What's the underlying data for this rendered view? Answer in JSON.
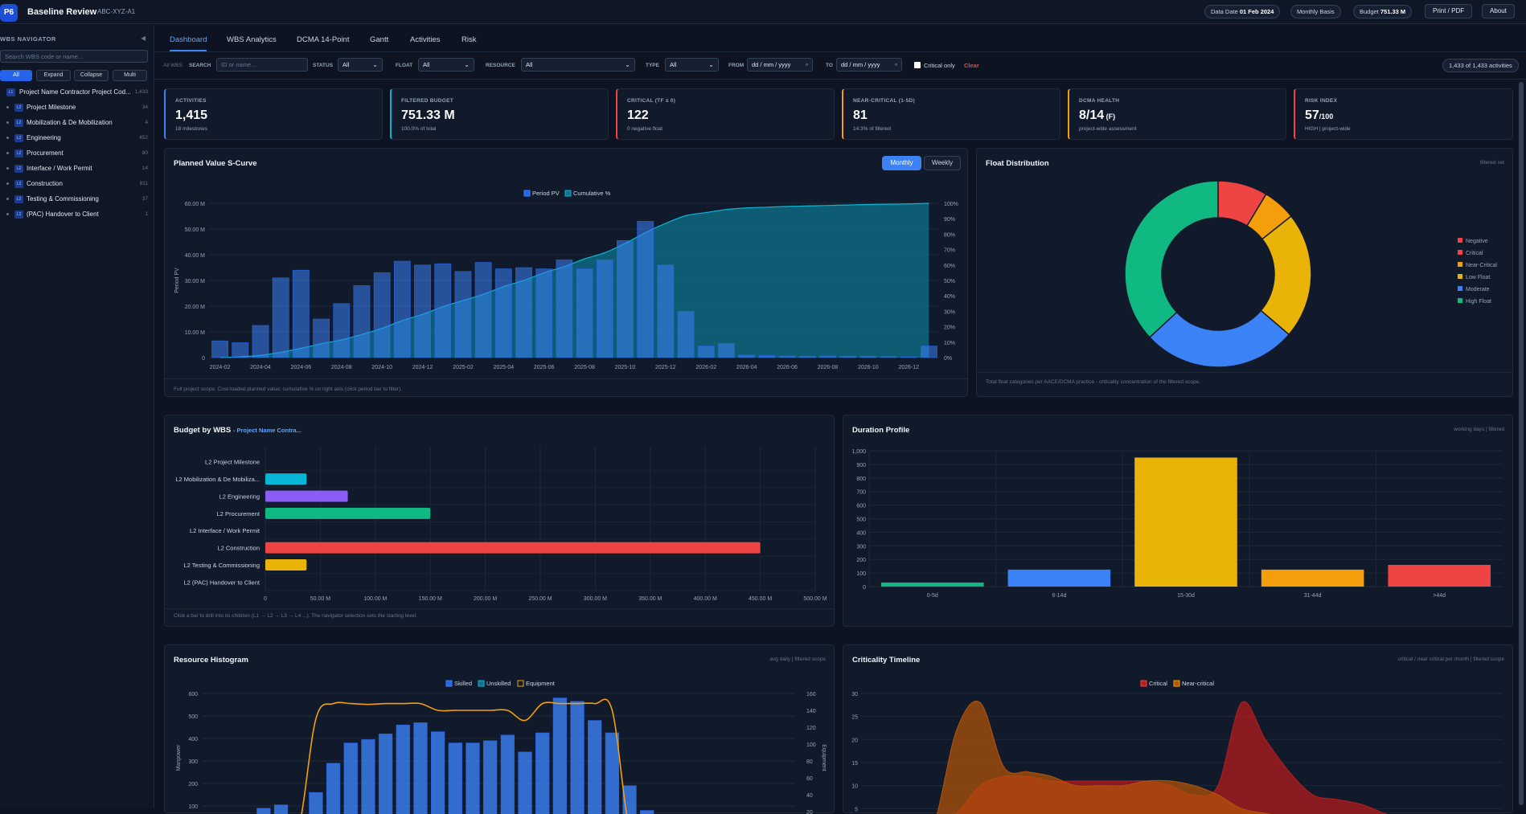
{
  "app": {
    "logo": "P6",
    "title": "Baseline Review",
    "project_code": "ABC-XYZ-A1"
  },
  "header": {
    "data_date_label": "Data Date",
    "data_date": "01 Feb 2024",
    "basis": "Monthly Basis",
    "budget_label": "Budget",
    "budget": "751.33 M",
    "print_label": "Print / PDF",
    "about_label": "About"
  },
  "sidebar": {
    "title": "WBS NAVIGATOR",
    "collapse_icon": "◀",
    "search_placeholder": "Search WBS code or name...",
    "buttons": [
      "All",
      "Expand",
      "Collapse",
      "Multi"
    ],
    "items": [
      {
        "level": "L1",
        "name": "Project Name Contractor Project Cod...",
        "count": "1,433"
      },
      {
        "level": "L2",
        "name": "Project Milestone",
        "count": "34"
      },
      {
        "level": "L2",
        "name": "Mobilization & De Mobilization",
        "count": "4"
      },
      {
        "level": "L2",
        "name": "Engineering",
        "count": "452"
      },
      {
        "level": "L2",
        "name": "Procurement",
        "count": "80"
      },
      {
        "level": "L2",
        "name": "Interface / Work Permit",
        "count": "14"
      },
      {
        "level": "L2",
        "name": "Construction",
        "count": "811"
      },
      {
        "level": "L2",
        "name": "Testing & Commissioning",
        "count": "37"
      },
      {
        "level": "L2",
        "name": "(PAC) Handover to Client",
        "count": "1"
      }
    ]
  },
  "tabs": [
    "Dashboard",
    "WBS Analytics",
    "DCMA 14-Point",
    "Gantt",
    "Activities",
    "Risk"
  ],
  "filters": {
    "scope": "All WBS",
    "search_label": "SEARCH",
    "search_placeholder": "ID or name...",
    "status_label": "STATUS",
    "status_value": "All",
    "float_label": "FLOAT",
    "float_value": "All",
    "resource_label": "RESOURCE",
    "resource_value": "All",
    "type_label": "TYPE",
    "type_value": "All",
    "from_label": "FROM",
    "from_placeholder": "dd / mm / yyyy",
    "to_label": "TO",
    "to_placeholder": "dd / mm / yyyy",
    "critical_only": "Critical only",
    "clear": "Clear",
    "count": "1,433 of 1,433 activities"
  },
  "kpis": [
    {
      "label": "ACTIVITIES",
      "value": "1,415",
      "unit": "",
      "sub": "18 milestones",
      "color": "#3b82f6"
    },
    {
      "label": "FILTERED BUDGET",
      "value": "751.33 M",
      "unit": "",
      "sub": "100.0% of total",
      "color": "#06b6d4"
    },
    {
      "label": "CRITICAL (TF ≤ 0)",
      "value": "122",
      "unit": "",
      "sub": "0 negative float",
      "color": "#ef4444"
    },
    {
      "label": "NEAR-CRITICAL (1-5D)",
      "value": "81",
      "unit": "",
      "sub": "14.3% of filtered",
      "color": "#f59e0b"
    },
    {
      "label": "DCMA HEALTH",
      "value": "8/14",
      "unit": " (F)",
      "sub": "project-wide assessment",
      "color": "#f59e0b"
    },
    {
      "label": "RISK INDEX",
      "value": "57",
      "unit": "/100",
      "sub": "HIGH | project-wide",
      "color": "#ef4444"
    }
  ],
  "panels": {
    "scurve": {
      "title": "Planned Value S-Curve",
      "monthly": "Monthly",
      "weekly": "Weekly",
      "footer": "Full project scope. Cost-loaded planned value; cumulative % on right axis (click period bar to filter)."
    },
    "float": {
      "title": "Float Distribution",
      "meta": "filtered set",
      "footer": "Total float categories per AACE/DCMA practice - criticality concentration of the filtered scope."
    },
    "budget": {
      "title": "Budget by WBS",
      "subtitle": "- Project Name Contra...",
      "footer": "Click a bar to drill into its children (L1 → L2 → L3 → L4 ...). The navigator selection sets the starting level."
    },
    "duration": {
      "title": "Duration Profile",
      "meta": "working days | filtered"
    },
    "resource": {
      "title": "Resource Histogram",
      "meta": "avg daily | filtered scope"
    },
    "criticality": {
      "title": "Criticality Timeline",
      "meta": "critical / near critical per month | filtered scope"
    }
  },
  "chart_data": [
    {
      "id": "scurve",
      "type": "bar",
      "title": "Planned Value S-Curve",
      "ylabel": "Period PV",
      "ylim": [
        0,
        60
      ],
      "ylim_right": [
        0,
        100
      ],
      "yticks": [
        "0",
        "10.00 M",
        "20.00 M",
        "30.00 M",
        "40.00 M",
        "50.00 M",
        "60.00 M"
      ],
      "yticks_right": [
        "0%",
        "10%",
        "20%",
        "30%",
        "40%",
        "50%",
        "60%",
        "70%",
        "80%",
        "90%",
        "100%"
      ],
      "xtick_labels": [
        "2024-02",
        "2024-04",
        "2024-06",
        "2024-08",
        "2024-10",
        "2024-12",
        "2025-02",
        "2025-04",
        "2025-06",
        "2025-08",
        "2025-10",
        "2025-12",
        "2026-02",
        "2026-04",
        "2026-06",
        "2026-08",
        "2026-10",
        "2026-12"
      ],
      "legend": [
        "Period PV",
        "Cumulative %"
      ],
      "legend_position": "top-center",
      "series": [
        {
          "name": "Period PV",
          "color": "#3b82f6",
          "values": [
            6.5,
            5.8,
            12.5,
            31,
            34,
            15,
            21,
            28,
            33,
            37.5,
            36,
            36.5,
            33.5,
            37,
            34.5,
            35,
            34.5,
            38,
            34.5,
            38,
            45.5,
            53,
            36,
            18,
            4.5,
            5.5,
            1,
            0.8,
            0.6,
            0.5,
            0.6,
            0.5,
            0.5,
            0.4,
            0.3,
            4.5
          ]
        },
        {
          "name": "Cumulative %",
          "color": "#0e7490",
          "values": [
            0,
            0.5,
            1.5,
            3.5,
            6,
            9,
            11.5,
            15,
            19,
            24,
            28,
            33,
            37,
            41,
            46,
            50,
            55,
            59,
            64,
            68,
            74,
            81,
            87,
            92,
            94,
            96,
            97,
            97.5,
            98,
            98.3,
            98.6,
            98.9,
            99.2,
            99.4,
            99.6,
            100
          ]
        }
      ]
    },
    {
      "id": "float",
      "type": "pie",
      "title": "Float Distribution",
      "legend_position": "right",
      "categories": [
        "Negative",
        "Critical",
        "Near-Critical",
        "Low Float",
        "Moderate",
        "High Float"
      ],
      "colors": [
        "#ef4444",
        "#ef4444",
        "#f59e0b",
        "#eab308",
        "#3b82f6",
        "#10b981"
      ],
      "values": [
        0,
        122,
        81,
        310,
        380,
        522
      ]
    },
    {
      "id": "budget",
      "type": "bar",
      "orientation": "horizontal",
      "title": "Budget by WBS",
      "xlim": [
        0,
        500
      ],
      "xticks": [
        "0",
        "50.00 M",
        "100.00 M",
        "150.00 M",
        "200.00 M",
        "250.00 M",
        "300.00 M",
        "350.00 M",
        "400.00 M",
        "450.00 M",
        "500.00 M"
      ],
      "categories": [
        "L2 Project Milestone",
        "L2 Mobilization & De Mobiliza...",
        "L2 Engineering",
        "L2 Procurement",
        "L2 Interface / Work Permit",
        "L2 Construction",
        "L2 Testing & Commissioning",
        "L2 (PAC) Handover to Client"
      ],
      "values": [
        0,
        37.5,
        75,
        150,
        0,
        450,
        37.5,
        0
      ],
      "colors": [
        "#3b82f6",
        "#06b6d4",
        "#8b5cf6",
        "#10b981",
        "#3b82f6",
        "#ef4444",
        "#eab308",
        "#3b82f6"
      ]
    },
    {
      "id": "duration",
      "type": "bar",
      "title": "Duration Profile",
      "ylim": [
        0,
        1000
      ],
      "yticks": [
        "0",
        "100",
        "200",
        "300",
        "400",
        "500",
        "600",
        "700",
        "800",
        "900",
        "1,000"
      ],
      "categories": [
        "0-5d",
        "6-14d",
        "15-30d",
        "31-44d",
        ">44d"
      ],
      "values": [
        30,
        125,
        950,
        125,
        160
      ],
      "colors": [
        "#10b981",
        "#3b82f6",
        "#eab308",
        "#f59e0b",
        "#ef4444"
      ]
    },
    {
      "id": "resource",
      "type": "bar",
      "title": "Resource Histogram",
      "ylabel": "Manpower",
      "ylabel_right": "Equipment",
      "ylim": [
        0,
        600
      ],
      "ylim_right": [
        0,
        160
      ],
      "yticks": [
        "100",
        "200",
        "300",
        "400",
        "500",
        "600"
      ],
      "yticks_right": [
        "20",
        "40",
        "60",
        "80",
        "100",
        "120",
        "140",
        "160"
      ],
      "legend": [
        "Skilled",
        "Unskilled",
        "Equipment"
      ],
      "legend_position": "top-center",
      "series": [
        {
          "name": "Skilled",
          "color": "#3b82f6",
          "values": [
            50,
            60,
            50,
            90,
            105,
            60,
            160,
            290,
            380,
            395,
            420,
            460,
            470,
            430,
            380,
            380,
            390,
            415,
            340,
            425,
            580,
            565,
            480,
            425,
            190,
            80
          ]
        },
        {
          "name": "Equipment",
          "color": "#f59e0b",
          "values": [
            0,
            0,
            0,
            0,
            0,
            0,
            130,
            148,
            148,
            147,
            148,
            148,
            148,
            140,
            140,
            140,
            140,
            140,
            128,
            148,
            148,
            148,
            148,
            140,
            0,
            0
          ]
        }
      ]
    },
    {
      "id": "criticality",
      "type": "area",
      "title": "Criticality Timeline",
      "ylim": [
        0,
        30
      ],
      "yticks": [
        "5",
        "10",
        "15",
        "20",
        "25",
        "30"
      ],
      "legend": [
        "Critical",
        "Near-critical"
      ],
      "legend_position": "top-center",
      "series": [
        {
          "name": "Critical",
          "color": "#b91c1c",
          "values": [
            0,
            1,
            2,
            4,
            10,
            12,
            12,
            11,
            11,
            11,
            11,
            11,
            10,
            8,
            10,
            28,
            20,
            13,
            8,
            7,
            6,
            4,
            2,
            0
          ]
        },
        {
          "name": "Near-critical",
          "color": "#b45309",
          "values": [
            0,
            0,
            1,
            22,
            28,
            14,
            13,
            12,
            10,
            10,
            10,
            11,
            11,
            10,
            8,
            5,
            4,
            3,
            2,
            1,
            0,
            0,
            0,
            0
          ]
        }
      ]
    }
  ]
}
